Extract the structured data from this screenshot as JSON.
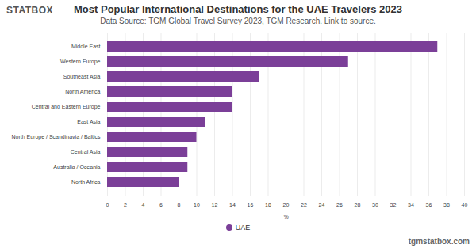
{
  "chart_data": {
    "type": "bar",
    "orientation": "horizontal",
    "title": "Most Popular International Destinations for the UAE Travelers 2023",
    "subtitle": "Data Source: TGM Global Travel Survey 2023, TGM Research. Link to source.",
    "logo": "STATBOX",
    "watermark": "tgmstatbox.com",
    "x_label": "%",
    "categories": [
      "Middle East",
      "Western Europe",
      "Southeast Asia",
      "North America",
      "Central and Eastern Europe",
      "East Asia",
      "North Europe / Scandinavia / Baltics",
      "Central Asia",
      "Australia / Oceania",
      "North Africa"
    ],
    "series": [
      {
        "name": "UAE",
        "color": "#7b3f98",
        "values": [
          37,
          27,
          17,
          14,
          14,
          11,
          10,
          9,
          9,
          8
        ]
      }
    ],
    "xlim": [
      0,
      40
    ],
    "xticks": [
      0,
      2,
      4,
      6,
      8,
      10,
      12,
      14,
      16,
      18,
      20,
      22,
      24,
      26,
      28,
      30,
      32,
      34,
      36,
      38,
      40
    ],
    "grid": true,
    "legend": "bottom"
  }
}
